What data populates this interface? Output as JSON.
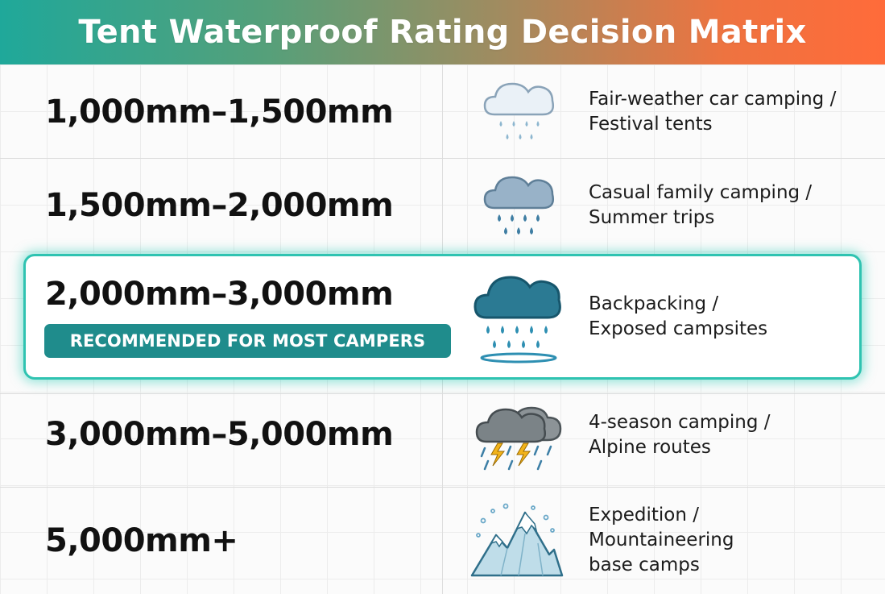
{
  "title": "Tent Waterproof Rating Decision Matrix",
  "rows": [
    {
      "range": "1,000mm–1,500mm",
      "use_line1": "Fair-weather car camping /",
      "use_line2": "Festival tents",
      "use_line3": "",
      "icon": "light-rain-cloud-icon"
    },
    {
      "range": "1,500mm–2,000mm",
      "use_line1": "Casual family camping /",
      "use_line2": "Summer trips",
      "use_line3": "",
      "icon": "moderate-rain-cloud-icon"
    },
    {
      "range": "2,000mm–3,000mm",
      "use_line1": "Backpacking /",
      "use_line2": "Exposed campsites",
      "use_line3": "",
      "icon": "heavy-rain-cloud-icon",
      "badge": "RECOMMENDED FOR MOST CAMPERS",
      "highlighted": true
    },
    {
      "range": "3,000mm–5,000mm",
      "use_line1": "4-season camping /",
      "use_line2": "Alpine routes",
      "use_line3": "",
      "icon": "thunderstorm-cloud-icon"
    },
    {
      "range": "5,000mm+",
      "use_line1": "Expedition /",
      "use_line2": "Mountaineering",
      "use_line3": "base camps",
      "icon": "snowy-mountain-icon"
    }
  ],
  "colors": {
    "header_start": "#1fa89a",
    "header_end": "#ff6b3a",
    "highlight_border": "#2fc3b1",
    "badge_background": "#1f8c8c"
  }
}
